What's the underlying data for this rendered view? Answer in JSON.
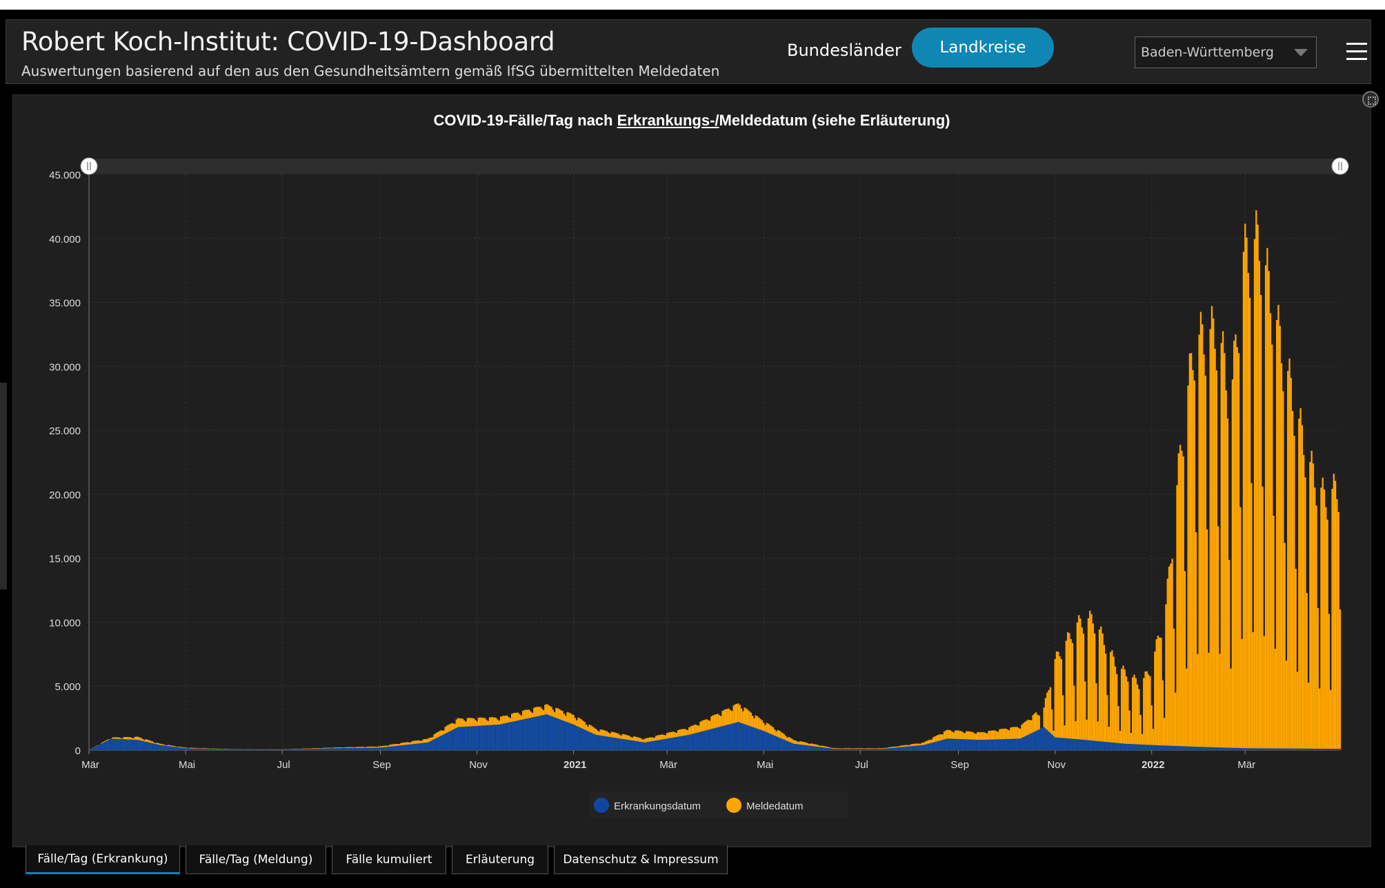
{
  "header": {
    "title": "Robert Koch-Institut: COVID-19-Dashboard",
    "subtitle": "Auswertungen basierend auf den aus den Gesundheitsämtern gemäß IfSG übermittelten Meldedaten",
    "nav_bundeslaender": "Bundesländer",
    "nav_landkreise": "Landkreise",
    "region_select": "Baden-Württemberg"
  },
  "chart_title": {
    "part1": "COVID-19-Fälle/Tag nach ",
    "part2": "Erkrankungs-/",
    "part3": "Meldedatum (siehe Erläuterung)"
  },
  "colors": {
    "erkrankung": "#0d47a1",
    "meldung": "#ffa600",
    "active_button": "#0f86b4"
  },
  "tabs": [
    {
      "label": "Fälle/Tag (Erkrankung)",
      "active": true
    },
    {
      "label": "Fälle/Tag (Meldung)",
      "active": false
    },
    {
      "label": "Fälle kumuliert",
      "active": false
    },
    {
      "label": "Erläuterung",
      "active": false
    },
    {
      "label": "Datenschutz & Impressum",
      "active": false
    }
  ],
  "chart_data": {
    "type": "bar",
    "stacked": true,
    "x_start": "2020-03-01",
    "x_end": "2022-04-30",
    "ylim": [
      0,
      45000
    ],
    "y_ticks": [
      "0",
      "5.000",
      "10.000",
      "15.000",
      "20.000",
      "25.000",
      "30.000",
      "35.000",
      "40.000",
      "45.000"
    ],
    "y_tick_values": [
      0,
      5000,
      10000,
      15000,
      20000,
      25000,
      30000,
      35000,
      40000,
      45000
    ],
    "x_ticks": [
      {
        "label": "Mär",
        "date": "2020-03-01",
        "bold": false
      },
      {
        "label": "Mai",
        "date": "2020-05-01",
        "bold": false
      },
      {
        "label": "Jul",
        "date": "2020-07-01",
        "bold": false
      },
      {
        "label": "Sep",
        "date": "2020-09-01",
        "bold": false
      },
      {
        "label": "Nov",
        "date": "2020-11-01",
        "bold": false
      },
      {
        "label": "2021",
        "date": "2021-01-01",
        "bold": true
      },
      {
        "label": "Mär",
        "date": "2021-03-01",
        "bold": false
      },
      {
        "label": "Mai",
        "date": "2021-05-01",
        "bold": false
      },
      {
        "label": "Jul",
        "date": "2021-07-01",
        "bold": false
      },
      {
        "label": "Sep",
        "date": "2021-09-01",
        "bold": false
      },
      {
        "label": "Nov",
        "date": "2021-11-01",
        "bold": false
      },
      {
        "label": "2022",
        "date": "2022-01-01",
        "bold": true
      },
      {
        "label": "Mär",
        "date": "2022-03-01",
        "bold": false
      }
    ],
    "legend": {
      "position": "bottom-center",
      "items": [
        "Erkrankungsdatum",
        "Meldedatum"
      ]
    },
    "grid": true,
    "series": [
      {
        "name": "Erkrankungsdatum",
        "points": [
          [
            "2020-03-01",
            0
          ],
          [
            "2020-03-15",
            900
          ],
          [
            "2020-04-01",
            800
          ],
          [
            "2020-04-15",
            400
          ],
          [
            "2020-05-01",
            150
          ],
          [
            "2020-06-01",
            50
          ],
          [
            "2020-07-01",
            40
          ],
          [
            "2020-08-01",
            150
          ],
          [
            "2020-09-01",
            200
          ],
          [
            "2020-10-01",
            600
          ],
          [
            "2020-10-20",
            1800
          ],
          [
            "2020-11-15",
            2000
          ],
          [
            "2020-12-15",
            2800
          ],
          [
            "2021-01-01",
            2000
          ],
          [
            "2021-01-15",
            1200
          ],
          [
            "2021-02-15",
            600
          ],
          [
            "2021-03-15",
            1200
          ],
          [
            "2021-04-15",
            2200
          ],
          [
            "2021-05-01",
            1500
          ],
          [
            "2021-05-20",
            500
          ],
          [
            "2021-06-15",
            100
          ],
          [
            "2021-07-15",
            100
          ],
          [
            "2021-08-10",
            400
          ],
          [
            "2021-08-25",
            900
          ],
          [
            "2021-09-15",
            800
          ],
          [
            "2021-10-10",
            900
          ],
          [
            "2021-10-25",
            1800
          ],
          [
            "2021-11-01",
            1000
          ],
          [
            "2021-11-20",
            800
          ],
          [
            "2021-12-15",
            500
          ],
          [
            "2022-01-01",
            400
          ],
          [
            "2022-02-01",
            250
          ],
          [
            "2022-03-01",
            150
          ],
          [
            "2022-04-30",
            100
          ]
        ]
      },
      {
        "name": "Meldedatum",
        "points": [
          [
            "2020-03-01",
            0
          ],
          [
            "2020-03-15",
            1000
          ],
          [
            "2020-04-01",
            1050
          ],
          [
            "2020-04-15",
            500
          ],
          [
            "2020-05-01",
            200
          ],
          [
            "2020-06-01",
            70
          ],
          [
            "2020-07-01",
            60
          ],
          [
            "2020-08-01",
            200
          ],
          [
            "2020-09-01",
            300
          ],
          [
            "2020-10-01",
            900
          ],
          [
            "2020-10-20",
            2500
          ],
          [
            "2020-11-15",
            2600
          ],
          [
            "2020-12-15",
            3600
          ],
          [
            "2021-01-01",
            2800
          ],
          [
            "2021-01-15",
            1700
          ],
          [
            "2021-02-15",
            900
          ],
          [
            "2021-03-15",
            1800
          ],
          [
            "2021-04-15",
            3700
          ],
          [
            "2021-05-01",
            2300
          ],
          [
            "2021-05-20",
            800
          ],
          [
            "2021-06-15",
            150
          ],
          [
            "2021-07-15",
            150
          ],
          [
            "2021-08-10",
            600
          ],
          [
            "2021-08-25",
            1600
          ],
          [
            "2021-09-15",
            1400
          ],
          [
            "2021-10-10",
            1900
          ],
          [
            "2021-10-25",
            3500
          ],
          [
            "2021-11-01",
            7500
          ],
          [
            "2021-11-15",
            10500
          ],
          [
            "2021-11-25",
            11000
          ],
          [
            "2021-12-10",
            7000
          ],
          [
            "2021-12-25",
            5500
          ],
          [
            "2022-01-01",
            7000
          ],
          [
            "2022-01-10",
            12000
          ],
          [
            "2022-01-20",
            26000
          ],
          [
            "2022-01-28",
            34000
          ],
          [
            "2022-02-05",
            34500
          ],
          [
            "2022-02-12",
            35000
          ],
          [
            "2022-02-20",
            29000
          ],
          [
            "2022-02-28",
            41000
          ],
          [
            "2022-03-10",
            42500
          ],
          [
            "2022-03-20",
            36000
          ],
          [
            "2022-03-30",
            30000
          ],
          [
            "2022-04-10",
            24000
          ],
          [
            "2022-04-20",
            21000
          ],
          [
            "2022-04-30",
            22000
          ]
        ]
      }
    ]
  }
}
